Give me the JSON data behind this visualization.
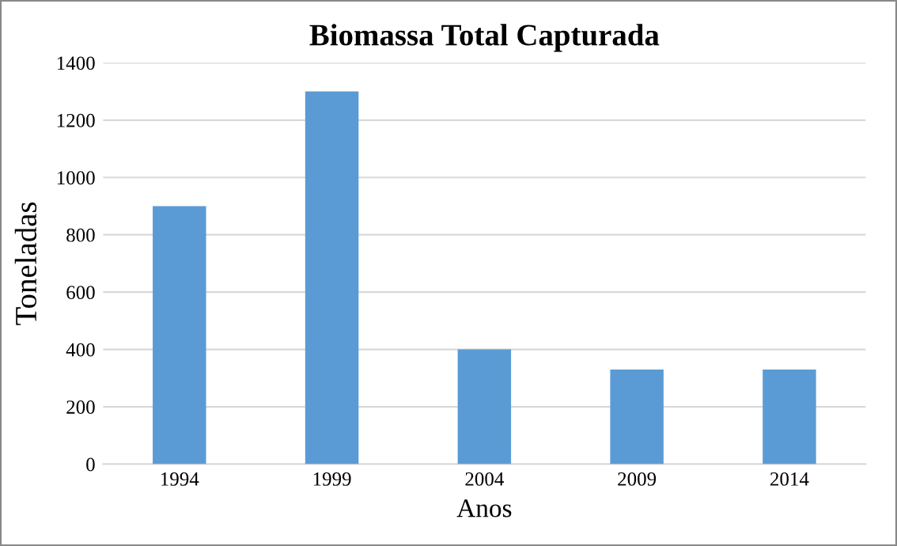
{
  "chart_data": {
    "type": "bar",
    "title": "Biomassa Total Capturada",
    "xlabel": "Anos",
    "ylabel": "Toneladas",
    "categories": [
      "1994",
      "1999",
      "2004",
      "2009",
      "2014"
    ],
    "values": [
      900,
      1300,
      400,
      330,
      330
    ],
    "color": "#5b9bd5",
    "ylim": [
      0,
      1400
    ],
    "yticks": [
      0,
      200,
      400,
      600,
      800,
      1000,
      1200,
      1400
    ],
    "grid": "y"
  }
}
